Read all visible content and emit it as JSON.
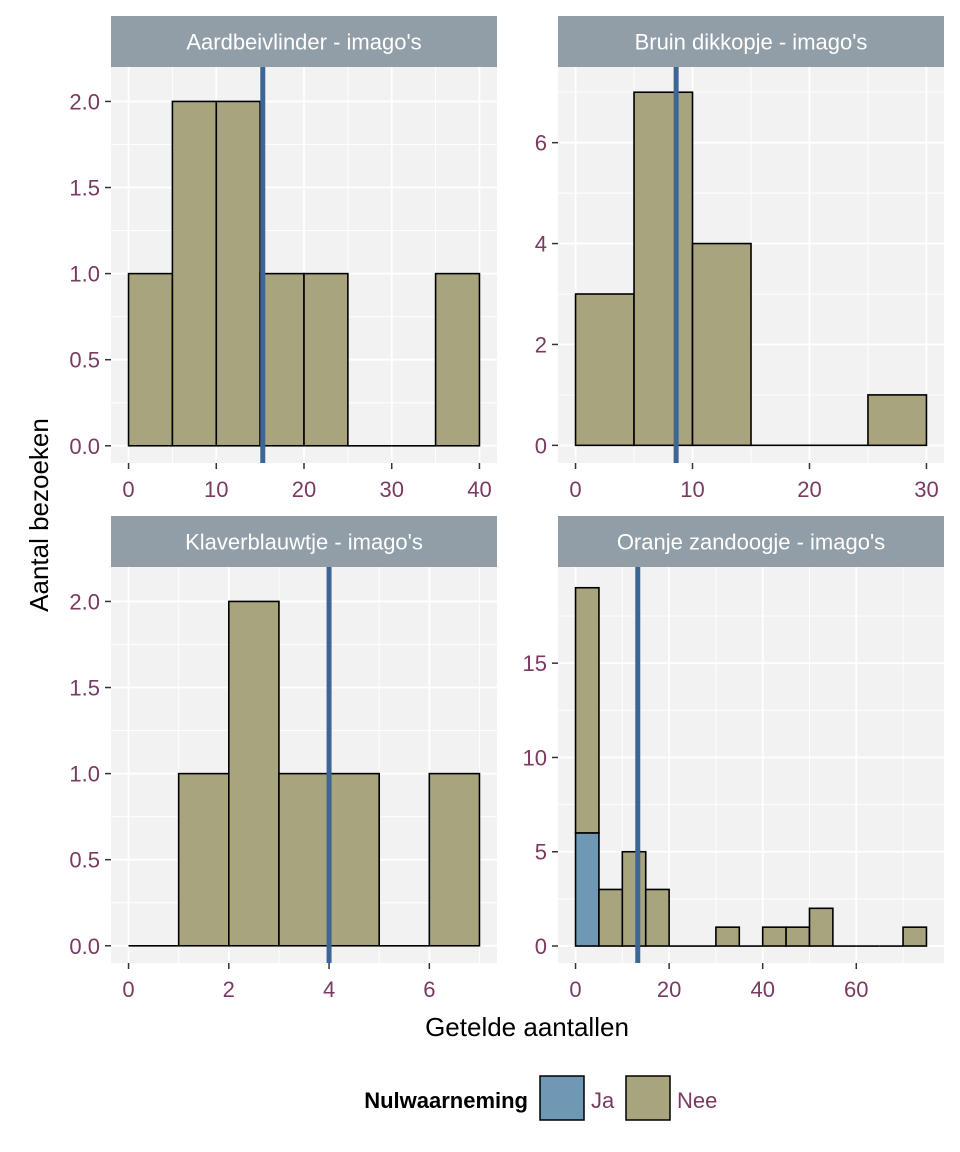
{
  "figure": {
    "xlabel": "Getelde aantallen",
    "ylabel": "Aantal bezoeken",
    "legend": {
      "title": "Nulwaarneming",
      "placement": "bottom",
      "items": [
        {
          "label": "Ja",
          "color": "#6e98b3"
        },
        {
          "label": "Nee",
          "color": "#a8a47e"
        }
      ]
    },
    "colors": {
      "panel_background": "#f2f2f2",
      "grid": "#ffffff",
      "strip": "#919ea7",
      "mean_line": "#3d6595",
      "tick_text": "#7b3a61",
      "bar_outline": "#000000"
    }
  },
  "chart_data": [
    {
      "type": "bar",
      "title": "Aardbeivlinder - imago's",
      "xlim": [
        -2,
        42
      ],
      "ylim": [
        -0.1,
        2.2
      ],
      "xticks": [
        0,
        10,
        20,
        30,
        40
      ],
      "yticks": [
        0.0,
        0.5,
        1.0,
        1.5,
        2.0
      ],
      "ytick_labels": [
        "0.0",
        "0.5",
        "1.0",
        "1.5",
        "2.0"
      ],
      "mean": 15.3,
      "bins": [
        {
          "x0": 0,
          "x1": 5,
          "Ja": 0,
          "Nee": 1
        },
        {
          "x0": 5,
          "x1": 10,
          "Ja": 0,
          "Nee": 2
        },
        {
          "x0": 10,
          "x1": 15,
          "Ja": 0,
          "Nee": 2
        },
        {
          "x0": 15,
          "x1": 20,
          "Ja": 0,
          "Nee": 1
        },
        {
          "x0": 20,
          "x1": 25,
          "Ja": 0,
          "Nee": 1
        },
        {
          "x0": 25,
          "x1": 30,
          "Ja": 0,
          "Nee": 0
        },
        {
          "x0": 30,
          "x1": 35,
          "Ja": 0,
          "Nee": 0
        },
        {
          "x0": 35,
          "x1": 40,
          "Ja": 0,
          "Nee": 1
        }
      ]
    },
    {
      "type": "bar",
      "title": "Bruin dikkopje - imago's",
      "xlim": [
        -1.5,
        31.5
      ],
      "ylim": [
        -0.35,
        7.5
      ],
      "xticks": [
        0,
        10,
        20,
        30
      ],
      "yticks": [
        0,
        2,
        4,
        6
      ],
      "ytick_labels": [
        "0",
        "2",
        "4",
        "6"
      ],
      "mean": 8.6,
      "bins": [
        {
          "x0": 0,
          "x1": 5,
          "Ja": 0,
          "Nee": 3
        },
        {
          "x0": 5,
          "x1": 10,
          "Ja": 0,
          "Nee": 7
        },
        {
          "x0": 10,
          "x1": 15,
          "Ja": 0,
          "Nee": 4
        },
        {
          "x0": 15,
          "x1": 20,
          "Ja": 0,
          "Nee": 0
        },
        {
          "x0": 20,
          "x1": 25,
          "Ja": 0,
          "Nee": 0
        },
        {
          "x0": 25,
          "x1": 30,
          "Ja": 0,
          "Nee": 1
        }
      ]
    },
    {
      "type": "bar",
      "title": "Klaverblauwtje - imago's",
      "xlim": [
        -0.35,
        7.35
      ],
      "ylim": [
        -0.1,
        2.2
      ],
      "xticks": [
        0,
        2,
        4,
        6
      ],
      "yticks": [
        0.0,
        0.5,
        1.0,
        1.5,
        2.0
      ],
      "ytick_labels": [
        "0.0",
        "0.5",
        "1.0",
        "1.5",
        "2.0"
      ],
      "mean": 4.0,
      "bins": [
        {
          "x0": 0,
          "x1": 1,
          "Ja": 0,
          "Nee": 0
        },
        {
          "x0": 1,
          "x1": 2,
          "Ja": 0,
          "Nee": 1
        },
        {
          "x0": 2,
          "x1": 3,
          "Ja": 0,
          "Nee": 2
        },
        {
          "x0": 3,
          "x1": 4,
          "Ja": 0,
          "Nee": 1
        },
        {
          "x0": 4,
          "x1": 5,
          "Ja": 0,
          "Nee": 1
        },
        {
          "x0": 5,
          "x1": 6,
          "Ja": 0,
          "Nee": 0
        },
        {
          "x0": 6,
          "x1": 7,
          "Ja": 0,
          "Nee": 1
        }
      ]
    },
    {
      "type": "bar",
      "title": "Oranje zandoogje - imago's",
      "xlim": [
        -3.75,
        78.75
      ],
      "ylim": [
        -0.9,
        20.1
      ],
      "xticks": [
        0,
        20,
        40,
        60
      ],
      "yticks": [
        0,
        5,
        10,
        15
      ],
      "ytick_labels": [
        "0",
        "5",
        "10",
        "15"
      ],
      "mean": 13.3,
      "bins": [
        {
          "x0": 0,
          "x1": 5,
          "Ja": 6,
          "Nee": 13
        },
        {
          "x0": 5,
          "x1": 10,
          "Ja": 0,
          "Nee": 3
        },
        {
          "x0": 10,
          "x1": 15,
          "Ja": 0,
          "Nee": 5
        },
        {
          "x0": 15,
          "x1": 20,
          "Ja": 0,
          "Nee": 3
        },
        {
          "x0": 20,
          "x1": 25,
          "Ja": 0,
          "Nee": 0
        },
        {
          "x0": 25,
          "x1": 30,
          "Ja": 0,
          "Nee": 0
        },
        {
          "x0": 30,
          "x1": 35,
          "Ja": 0,
          "Nee": 1
        },
        {
          "x0": 35,
          "x1": 40,
          "Ja": 0,
          "Nee": 0
        },
        {
          "x0": 40,
          "x1": 45,
          "Ja": 0,
          "Nee": 1
        },
        {
          "x0": 45,
          "x1": 50,
          "Ja": 0,
          "Nee": 1
        },
        {
          "x0": 50,
          "x1": 55,
          "Ja": 0,
          "Nee": 2
        },
        {
          "x0": 55,
          "x1": 60,
          "Ja": 0,
          "Nee": 0
        },
        {
          "x0": 60,
          "x1": 65,
          "Ja": 0,
          "Nee": 0
        },
        {
          "x0": 65,
          "x1": 70,
          "Ja": 0,
          "Nee": 0
        },
        {
          "x0": 70,
          "x1": 75,
          "Ja": 0,
          "Nee": 1
        }
      ]
    }
  ]
}
